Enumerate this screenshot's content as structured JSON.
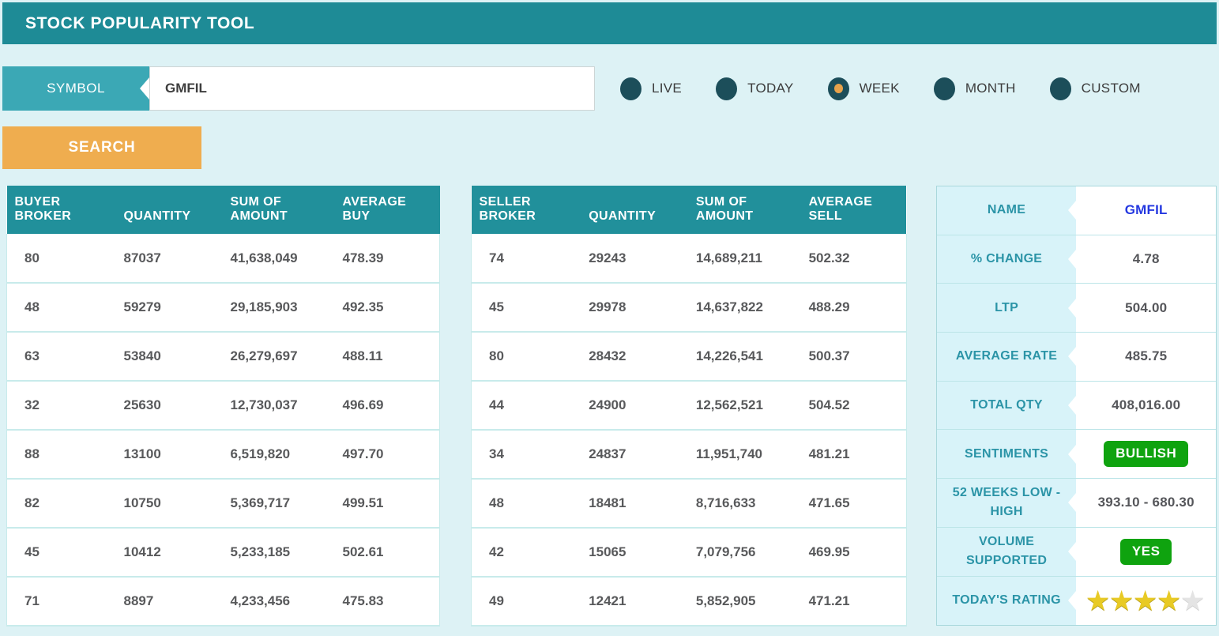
{
  "header": {
    "title": "STOCK POPULARITY TOOL"
  },
  "search": {
    "symbol_label": "SYMBOL",
    "symbol_value": "GMFIL",
    "button_label": "SEARCH"
  },
  "periods": [
    {
      "label": "LIVE",
      "selected": false
    },
    {
      "label": "TODAY",
      "selected": false
    },
    {
      "label": "WEEK",
      "selected": true
    },
    {
      "label": "MONTH",
      "selected": false
    },
    {
      "label": "CUSTOM",
      "selected": false
    }
  ],
  "buyer_table": {
    "headers": [
      "BUYER BROKER",
      "QUANTITY",
      "SUM OF AMOUNT",
      "AVERAGE BUY"
    ],
    "rows": [
      [
        "80",
        "87037",
        "41,638,049",
        "478.39"
      ],
      [
        "48",
        "59279",
        "29,185,903",
        "492.35"
      ],
      [
        "63",
        "53840",
        "26,279,697",
        "488.11"
      ],
      [
        "32",
        "25630",
        "12,730,037",
        "496.69"
      ],
      [
        "88",
        "13100",
        "6,519,820",
        "497.70"
      ],
      [
        "82",
        "10750",
        "5,369,717",
        "499.51"
      ],
      [
        "45",
        "10412",
        "5,233,185",
        "502.61"
      ],
      [
        "71",
        "8897",
        "4,233,456",
        "475.83"
      ]
    ]
  },
  "seller_table": {
    "headers": [
      "SELLER BROKER",
      "QUANTITY",
      "SUM OF AMOUNT",
      "AVERAGE SELL"
    ],
    "rows": [
      [
        "74",
        "29243",
        "14,689,211",
        "502.32"
      ],
      [
        "45",
        "29978",
        "14,637,822",
        "488.29"
      ],
      [
        "80",
        "28432",
        "14,226,541",
        "500.37"
      ],
      [
        "44",
        "24900",
        "12,562,521",
        "504.52"
      ],
      [
        "34",
        "24837",
        "11,951,740",
        "481.21"
      ],
      [
        "48",
        "18481",
        "8,716,633",
        "471.65"
      ],
      [
        "42",
        "15065",
        "7,079,756",
        "469.95"
      ],
      [
        "49",
        "12421",
        "5,852,905",
        "471.21"
      ]
    ]
  },
  "summary": {
    "rows": [
      {
        "label": "NAME",
        "value": "GMFIL",
        "type": "link"
      },
      {
        "label": "% CHANGE",
        "value": "4.78",
        "type": "text"
      },
      {
        "label": "LTP",
        "value": "504.00",
        "type": "text"
      },
      {
        "label": "AVERAGE RATE",
        "value": "485.75",
        "type": "text"
      },
      {
        "label": "TOTAL QTY",
        "value": "408,016.00",
        "type": "text"
      },
      {
        "label": "SENTIMENTS",
        "value": "BULLISH",
        "type": "badge"
      },
      {
        "label": "52 WEEKS LOW - HIGH",
        "value": "393.10 - 680.30",
        "type": "text"
      },
      {
        "label": "VOLUME SUPPORTED",
        "value": "YES",
        "type": "badge"
      },
      {
        "label": "TODAY'S RATING",
        "value": 4,
        "max": 5,
        "type": "rating"
      }
    ]
  },
  "colors": {
    "header_bar": "#1e8b96",
    "background": "#ddf2f5",
    "symbol_tag": "#3ba8b5",
    "search_button": "#efad4f",
    "table_header": "#21909b",
    "radio": "#1c4e5a",
    "radio_selected_dot": "#e7a24b",
    "label_cell_bg": "#d8f3f9",
    "label_text": "#2b94a7",
    "link_blue": "#2438e0",
    "badge_green": "#0fa30f",
    "star_gold": "#e8ca25"
  }
}
